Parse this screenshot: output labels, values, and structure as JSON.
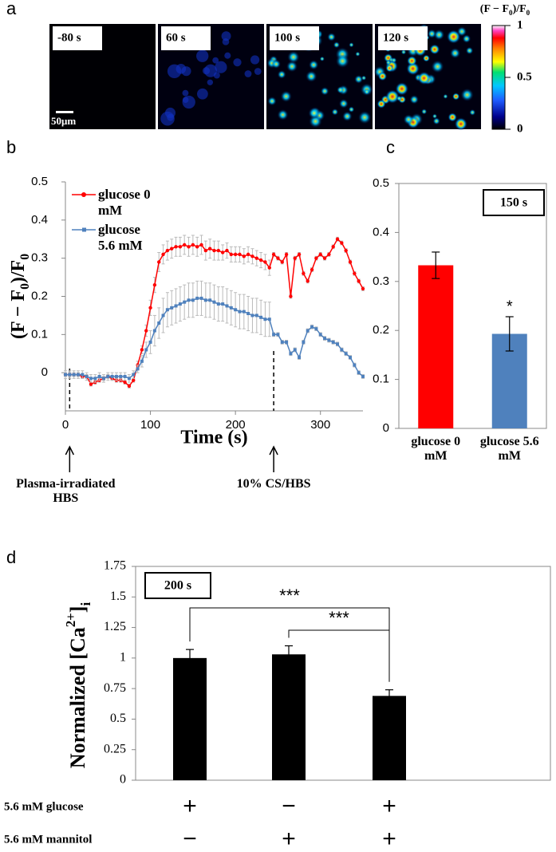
{
  "panel_a": {
    "label": "a",
    "frames": [
      "-80 s",
      "60 s",
      "100 s",
      "120 s"
    ],
    "scale_bar": "50μm",
    "colorbar": {
      "title": [
        "(F − F",
        "0",
        ")/F",
        "0"
      ],
      "lim": [
        0,
        1
      ],
      "ticks": [
        0,
        0.5,
        1
      ]
    }
  },
  "chart_data": [
    {
      "type": "line",
      "label": "b",
      "xlabel": "Time (s)",
      "ylabel": [
        "(F − F",
        "0",
        ")/F",
        "0"
      ],
      "x": [
        0,
        5,
        10,
        15,
        20,
        25,
        30,
        35,
        40,
        45,
        50,
        55,
        60,
        65,
        70,
        75,
        80,
        85,
        90,
        95,
        100,
        105,
        110,
        115,
        120,
        125,
        130,
        135,
        140,
        145,
        150,
        155,
        160,
        165,
        170,
        175,
        180,
        185,
        190,
        195,
        200,
        205,
        210,
        215,
        220,
        225,
        230,
        235,
        240,
        245,
        250,
        255,
        260,
        265,
        270,
        275,
        280,
        285,
        290,
        295,
        300,
        305,
        310,
        315,
        320,
        325,
        330,
        335,
        340,
        345,
        350
      ],
      "xlim": [
        0,
        350
      ],
      "xticks": [
        0,
        100,
        200,
        300
      ],
      "ylim": [
        -0.1,
        0.5
      ],
      "yticks": [
        0,
        0.1,
        0.2,
        0.3,
        0.4,
        0.5
      ],
      "series": [
        {
          "name": "glucose 0 mM",
          "color": "#ff0000",
          "marker": "circle",
          "values": [
            -0.005,
            -0.005,
            -0.005,
            -0.005,
            -0.01,
            -0.01,
            -0.03,
            -0.025,
            -0.02,
            -0.015,
            -0.01,
            -0.015,
            -0.02,
            -0.02,
            -0.025,
            -0.035,
            -0.02,
            0.02,
            0.06,
            0.11,
            0.17,
            0.23,
            0.29,
            0.31,
            0.32,
            0.325,
            0.33,
            0.33,
            0.335,
            0.33,
            0.335,
            0.33,
            0.335,
            0.32,
            0.325,
            0.32,
            0.32,
            0.315,
            0.32,
            0.31,
            0.31,
            0.31,
            0.305,
            0.31,
            0.305,
            0.3,
            0.295,
            0.29,
            0.275,
            0.31,
            0.3,
            0.29,
            0.31,
            0.2,
            0.3,
            0.31,
            0.26,
            0.24,
            0.27,
            0.3,
            0.31,
            0.3,
            0.31,
            0.33,
            0.35,
            0.34,
            0.32,
            0.29,
            0.26,
            0.24,
            0.22
          ],
          "errors": [
            0.005,
            0.005,
            0.005,
            0.005,
            0.005,
            0.005,
            0.005,
            0.005,
            0.005,
            0.005,
            0.005,
            0.005,
            0.005,
            0.005,
            0.005,
            0.005,
            0.005,
            0.01,
            0.01,
            0.015,
            0.02,
            0.02,
            0.025,
            0.025,
            0.025,
            0.025,
            0.025,
            0.025,
            0.025,
            0.025,
            0.025,
            0.025,
            0.025,
            0.025,
            0.025,
            0.025,
            0.025,
            0.02,
            0.02,
            0.02,
            0.02,
            0.02,
            0.02,
            0.02,
            0.02,
            0.02,
            0.02,
            0.02,
            0.02,
            0.005,
            0.005,
            0.005,
            0.005,
            0.005,
            0.005,
            0.005,
            0.005,
            0.005,
            0.005,
            0.005,
            0.005,
            0.005,
            0.005,
            0.005,
            0.005,
            0.005,
            0.005,
            0.005,
            0.005,
            0.005,
            0.005
          ]
        },
        {
          "name": "glucose 5.6 mM",
          "color": "#4f81bd",
          "marker": "square",
          "values": [
            -0.005,
            -0.005,
            -0.005,
            -0.005,
            -0.005,
            -0.01,
            -0.015,
            -0.015,
            -0.01,
            -0.015,
            -0.01,
            -0.01,
            -0.01,
            -0.01,
            -0.01,
            -0.015,
            -0.005,
            0.01,
            0.03,
            0.06,
            0.08,
            0.11,
            0.13,
            0.15,
            0.165,
            0.17,
            0.175,
            0.18,
            0.185,
            0.19,
            0.19,
            0.195,
            0.195,
            0.19,
            0.19,
            0.185,
            0.18,
            0.18,
            0.175,
            0.17,
            0.165,
            0.16,
            0.16,
            0.155,
            0.15,
            0.15,
            0.145,
            0.14,
            0.14,
            0.1,
            0.1,
            0.08,
            0.08,
            0.05,
            0.06,
            0.04,
            0.08,
            0.11,
            0.12,
            0.115,
            0.1,
            0.09,
            0.085,
            0.08,
            0.075,
            0.06,
            0.05,
            0.04,
            0.02,
            0,
            -0.01
          ],
          "errors": [
            0.01,
            0.01,
            0.01,
            0.01,
            0.01,
            0.01,
            0.01,
            0.01,
            0.01,
            0.01,
            0.01,
            0.01,
            0.01,
            0.01,
            0.01,
            0.01,
            0.01,
            0.01,
            0.015,
            0.02,
            0.03,
            0.04,
            0.04,
            0.045,
            0.045,
            0.045,
            0.045,
            0.045,
            0.045,
            0.045,
            0.045,
            0.045,
            0.045,
            0.045,
            0.045,
            0.045,
            0.045,
            0.045,
            0.045,
            0.045,
            0.045,
            0.045,
            0.045,
            0.045,
            0.045,
            0.045,
            0.045,
            0.045,
            0.045,
            0.005,
            0.005,
            0.005,
            0.005,
            0.005,
            0.005,
            0.005,
            0.005,
            0.005,
            0.005,
            0.005,
            0.005,
            0.005,
            0.005,
            0.005,
            0.005,
            0.005,
            0.005,
            0.005,
            0.005,
            0.005,
            0.005
          ]
        }
      ],
      "annotations": [
        {
          "text": "Plasma-irradiated HBS",
          "x": 5
        },
        {
          "text": "10% CS/HBS",
          "x": 245
        }
      ]
    },
    {
      "type": "bar",
      "label": "c",
      "categories": [
        "glucose 0 mM",
        "glucose 5.6 mM"
      ],
      "values": [
        0.333,
        0.193
      ],
      "errors": [
        0.027,
        0.035
      ],
      "colors": [
        "#ff0000",
        "#4f81bd"
      ],
      "ylim": [
        0,
        0.5
      ],
      "yticks": [
        0,
        0.1,
        0.2,
        0.3,
        0.4,
        0.5
      ],
      "annotation": "150 s",
      "significance": [
        null,
        "*"
      ]
    },
    {
      "type": "bar",
      "label": "d",
      "ylabel": [
        "Normalized [Ca",
        "2+",
        "]",
        "i"
      ],
      "values": [
        1.0,
        1.03,
        0.69
      ],
      "errors": [
        0.07,
        0.07,
        0.05
      ],
      "color": "#000000",
      "ylim": [
        0,
        1.75
      ],
      "yticks": [
        0,
        0.25,
        0.5,
        0.75,
        1,
        1.25,
        1.5,
        1.75
      ],
      "annotation": "200 s",
      "comparisons": [
        {
          "pair": [
            0,
            2
          ],
          "label": "***"
        },
        {
          "pair": [
            1,
            2
          ],
          "label": "***"
        }
      ],
      "conditions": [
        {
          "label": "5.6 mM glucose",
          "values": [
            "+",
            "−",
            "+"
          ]
        },
        {
          "label": "5.6 mM mannitol",
          "values": [
            "−",
            "+",
            "+"
          ]
        }
      ]
    }
  ]
}
